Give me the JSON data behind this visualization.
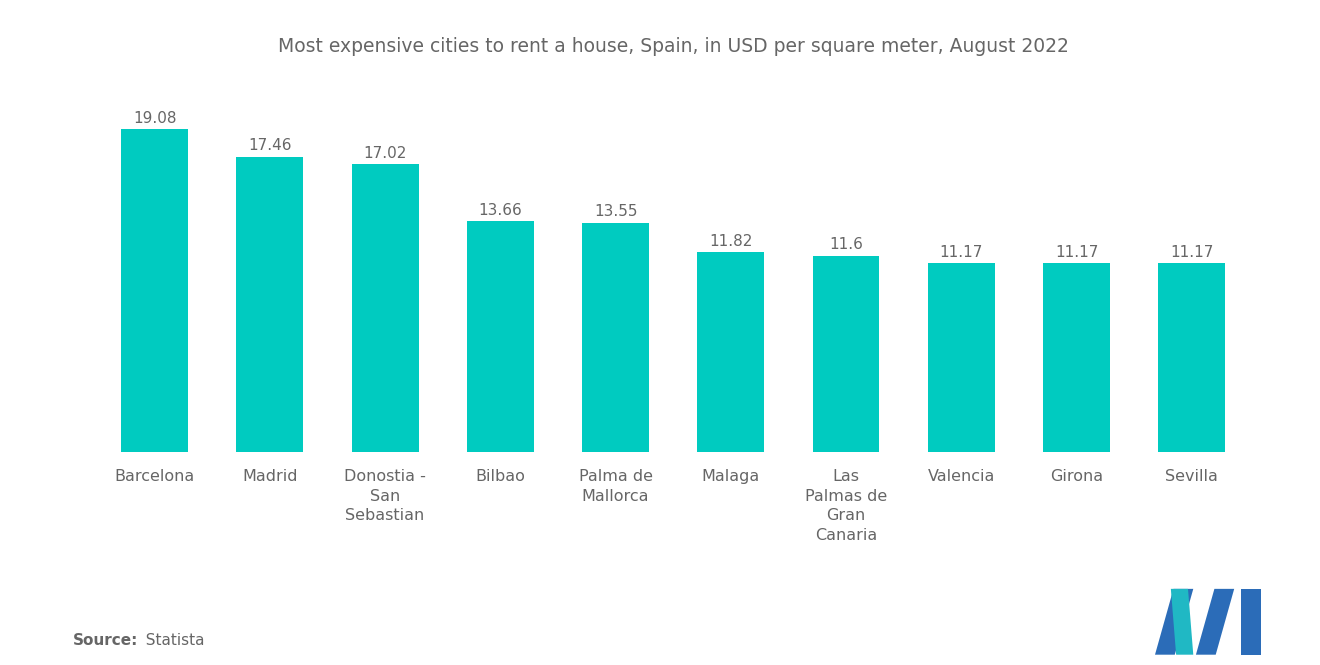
{
  "title": "Most expensive cities to rent a house, Spain, in USD per square meter, August 2022",
  "categories": [
    "Barcelona",
    "Madrid",
    "Donostia -\nSan\nSebastian",
    "Bilbao",
    "Palma de\nMallorca",
    "Malaga",
    "Las\nPalmas de\nGran\nCanaria",
    "Valencia",
    "Girona",
    "Sevilla"
  ],
  "values": [
    19.08,
    17.46,
    17.02,
    13.66,
    13.55,
    11.82,
    11.6,
    11.17,
    11.17,
    11.17
  ],
  "bar_color": "#00CBC0",
  "value_labels": [
    "19.08",
    "17.46",
    "17.02",
    "13.66",
    "13.55",
    "11.82",
    "11.6",
    "11.17",
    "11.17",
    "11.17"
  ],
  "source_bold": "Source:",
  "source_normal": "  Statista",
  "background_color": "#ffffff",
  "title_fontsize": 13.5,
  "label_fontsize": 11.5,
  "value_fontsize": 11,
  "source_fontsize": 11,
  "ylim": [
    0,
    22
  ],
  "bar_width": 0.58,
  "text_color": "#666666"
}
